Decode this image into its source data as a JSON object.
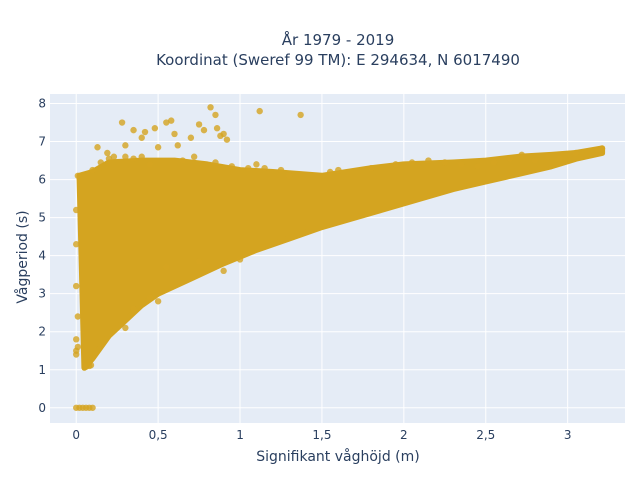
{
  "chart_data": {
    "type": "scatter",
    "title_line1": "År 1979 - 2019",
    "title_line2": "Koordinat (Sweref 99 TM): E 294634, N 6017490",
    "xlabel": "Signifikant våghöjd (m)",
    "ylabel": "Vågperiod (s)",
    "xlim": [
      -0.16,
      3.35
    ],
    "ylim": [
      -0.4,
      8.25
    ],
    "x_ticks": [
      {
        "value": 0,
        "label": "0"
      },
      {
        "value": 0.5,
        "label": "0,5"
      },
      {
        "value": 1,
        "label": "1"
      },
      {
        "value": 1.5,
        "label": "1,5"
      },
      {
        "value": 2,
        "label": "2"
      },
      {
        "value": 2.5,
        "label": "2,5"
      },
      {
        "value": 3,
        "label": "3"
      }
    ],
    "y_ticks": [
      {
        "value": 0,
        "label": "0"
      },
      {
        "value": 1,
        "label": "1"
      },
      {
        "value": 2,
        "label": "2"
      },
      {
        "value": 3,
        "label": "3"
      },
      {
        "value": 4,
        "label": "4"
      },
      {
        "value": 5,
        "label": "5"
      },
      {
        "value": 6,
        "label": "6"
      },
      {
        "value": 7,
        "label": "7"
      },
      {
        "value": 8,
        "label": "8"
      }
    ],
    "grid": true,
    "background": "#e5ecf6",
    "marker_color": "#d4a420",
    "envelope": {
      "upper": [
        [
          0.02,
          6.1
        ],
        [
          0.1,
          6.2
        ],
        [
          0.2,
          6.45
        ],
        [
          0.4,
          6.5
        ],
        [
          0.6,
          6.5
        ],
        [
          0.8,
          6.4
        ],
        [
          1.0,
          6.25
        ],
        [
          1.2,
          6.2
        ],
        [
          1.5,
          6.1
        ],
        [
          1.8,
          6.3
        ],
        [
          2.0,
          6.4
        ],
        [
          2.3,
          6.45
        ],
        [
          2.5,
          6.5
        ],
        [
          2.7,
          6.6
        ],
        [
          2.9,
          6.65
        ],
        [
          3.05,
          6.7
        ],
        [
          3.21,
          6.82
        ]
      ],
      "lower": [
        [
          0.05,
          1.05
        ],
        [
          0.1,
          1.3
        ],
        [
          0.2,
          1.9
        ],
        [
          0.3,
          2.3
        ],
        [
          0.4,
          2.7
        ],
        [
          0.5,
          3.0
        ],
        [
          0.7,
          3.4
        ],
        [
          0.9,
          3.8
        ],
        [
          1.1,
          4.15
        ],
        [
          1.3,
          4.45
        ],
        [
          1.5,
          4.75
        ],
        [
          1.7,
          5.0
        ],
        [
          1.9,
          5.25
        ],
        [
          2.1,
          5.5
        ],
        [
          2.3,
          5.75
        ],
        [
          2.5,
          5.95
        ],
        [
          2.7,
          6.15
        ],
        [
          2.9,
          6.35
        ],
        [
          3.05,
          6.55
        ],
        [
          3.21,
          6.7
        ]
      ]
    },
    "series": [
      {
        "points": [
          [
            0.0,
            0.0
          ],
          [
            0.02,
            0.0
          ],
          [
            0.04,
            0.0
          ],
          [
            0.06,
            0.0
          ],
          [
            0.08,
            0.0
          ],
          [
            0.1,
            0.0
          ],
          [
            0.0,
            1.4
          ],
          [
            0.0,
            1.5
          ],
          [
            0.01,
            1.6
          ],
          [
            0.0,
            1.8
          ],
          [
            0.01,
            2.4
          ],
          [
            0.0,
            3.2
          ],
          [
            0.0,
            4.3
          ],
          [
            0.0,
            5.2
          ],
          [
            0.01,
            6.1
          ],
          [
            0.06,
            1.08
          ],
          [
            0.08,
            1.1
          ],
          [
            0.09,
            1.12
          ],
          [
            0.1,
            6.25
          ],
          [
            0.15,
            6.45
          ],
          [
            0.2,
            6.55
          ],
          [
            0.23,
            6.6
          ],
          [
            0.13,
            6.85
          ],
          [
            0.19,
            6.7
          ],
          [
            0.3,
            6.6
          ],
          [
            0.35,
            6.55
          ],
          [
            0.4,
            6.6
          ],
          [
            0.28,
            7.5
          ],
          [
            0.3,
            6.9
          ],
          [
            0.35,
            7.3
          ],
          [
            0.4,
            7.1
          ],
          [
            0.42,
            7.25
          ],
          [
            0.48,
            7.35
          ],
          [
            0.5,
            6.85
          ],
          [
            0.55,
            7.5
          ],
          [
            0.58,
            7.55
          ],
          [
            0.6,
            7.2
          ],
          [
            0.62,
            6.9
          ],
          [
            0.7,
            7.1
          ],
          [
            0.75,
            7.45
          ],
          [
            0.78,
            7.3
          ],
          [
            0.82,
            7.9
          ],
          [
            0.85,
            7.7
          ],
          [
            0.86,
            7.35
          ],
          [
            0.88,
            7.15
          ],
          [
            0.9,
            7.2
          ],
          [
            0.92,
            7.05
          ],
          [
            1.12,
            7.8
          ],
          [
            1.37,
            7.7
          ],
          [
            0.45,
            6.4
          ],
          [
            0.65,
            6.5
          ],
          [
            0.72,
            6.6
          ],
          [
            0.85,
            6.45
          ],
          [
            0.95,
            6.35
          ],
          [
            1.05,
            6.3
          ],
          [
            1.1,
            6.4
          ],
          [
            1.15,
            6.3
          ],
          [
            1.25,
            6.25
          ],
          [
            1.3,
            6.1
          ],
          [
            1.55,
            6.2
          ],
          [
            1.6,
            6.25
          ],
          [
            1.8,
            6.3
          ],
          [
            1.95,
            6.4
          ],
          [
            2.05,
            6.45
          ],
          [
            2.15,
            6.5
          ],
          [
            2.25,
            6.45
          ],
          [
            2.35,
            6.4
          ],
          [
            2.45,
            6.35
          ],
          [
            2.55,
            6.45
          ],
          [
            2.65,
            6.55
          ],
          [
            2.72,
            6.65
          ],
          [
            2.8,
            6.5
          ],
          [
            2.88,
            6.6
          ],
          [
            2.95,
            6.55
          ],
          [
            3.05,
            6.7
          ],
          [
            3.18,
            6.78
          ],
          [
            3.21,
            6.82
          ],
          [
            0.55,
            3.7
          ],
          [
            0.75,
            3.85
          ],
          [
            0.9,
            3.6
          ],
          [
            1.0,
            3.9
          ],
          [
            0.5,
            2.8
          ],
          [
            0.45,
            2.9
          ],
          [
            0.35,
            2.6
          ],
          [
            0.3,
            2.1
          ]
        ]
      }
    ]
  }
}
